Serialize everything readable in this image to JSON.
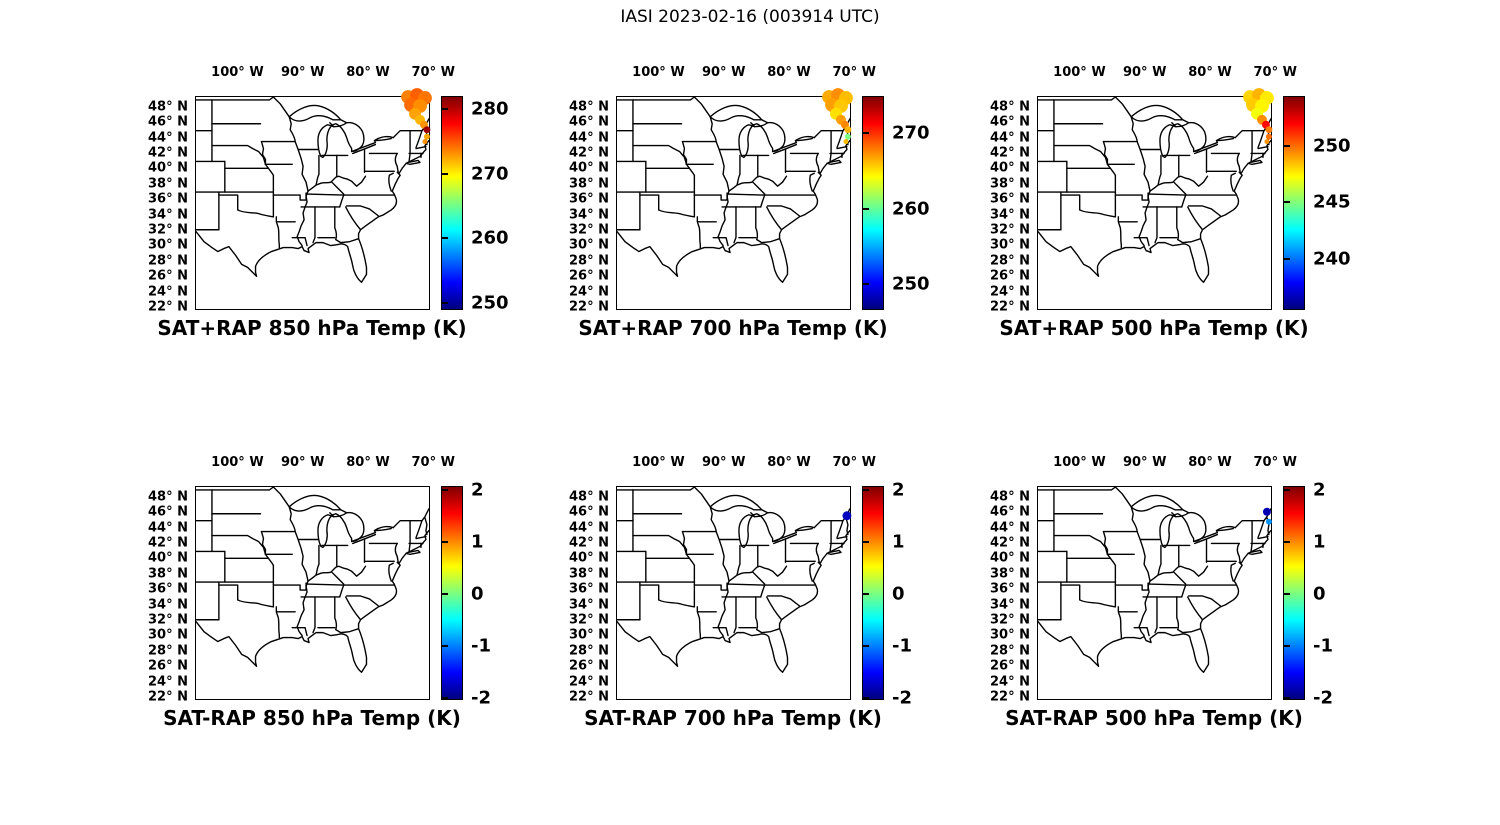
{
  "axes": {
    "x_ticks": [
      {
        "lon": -100,
        "label": "100° W"
      },
      {
        "lon": -90,
        "label": "90° W"
      },
      {
        "lon": -80,
        "label": "80° W"
      },
      {
        "lon": -70,
        "label": "70° W"
      }
    ],
    "y_ticks": [
      {
        "lat": 48,
        "label": "48° N"
      },
      {
        "lat": 46,
        "label": "46° N"
      },
      {
        "lat": 44,
        "label": "44° N"
      },
      {
        "lat": 42,
        "label": "42° N"
      },
      {
        "lat": 40,
        "label": "40° N"
      },
      {
        "lat": 38,
        "label": "38° N"
      },
      {
        "lat": 36,
        "label": "36° N"
      },
      {
        "lat": 34,
        "label": "34° N"
      },
      {
        "lat": 32,
        "label": "32° N"
      },
      {
        "lat": 30,
        "label": "30° N"
      },
      {
        "lat": 28,
        "label": "28° N"
      },
      {
        "lat": 26,
        "label": "26° N"
      },
      {
        "lat": 24,
        "label": "24° N"
      },
      {
        "lat": 22,
        "label": "22° N"
      }
    ]
  },
  "chart_data": {
    "type": "scatter_map",
    "title": "IASI 2023-02-16 (003914 UTC)",
    "colormap": "jet",
    "basemap": "US state boundaries, eastern and central CONUS",
    "projection_extent": {
      "lon_min": -106.5,
      "lon_max": -70.5,
      "lat_min": 21.6,
      "lat_max": 49.4
    },
    "panels": [
      {
        "id": "sat-plus-rap-850",
        "title": "SAT+RAP 850 hPa Temp (K)",
        "units": "K",
        "colorbar": {
          "min": 248.8,
          "max": 281.8,
          "ticks": [
            280,
            270,
            260,
            250
          ]
        },
        "points": [
          {
            "lon": -73.72,
            "lat": 49.4,
            "v": 273.5,
            "r": 7
          },
          {
            "lon": -72.34,
            "lat": 49.66,
            "v": 274.6,
            "r": 7
          },
          {
            "lon": -71.11,
            "lat": 49.27,
            "v": 273.9,
            "r": 7
          },
          {
            "lon": -73.26,
            "lat": 48.36,
            "v": 274.2,
            "r": 7
          },
          {
            "lon": -71.88,
            "lat": 48.23,
            "v": 273.1,
            "r": 7
          },
          {
            "lon": -72.64,
            "lat": 47.19,
            "v": 272.4,
            "r": 6
          },
          {
            "lon": -71.88,
            "lat": 46.41,
            "v": 271.8,
            "r": 5
          },
          {
            "lon": -71.27,
            "lat": 45.76,
            "v": 272.9,
            "r": 4
          },
          {
            "lon": -70.81,
            "lat": 45.11,
            "v": 280.9,
            "r": 3.5
          },
          {
            "lon": -70.81,
            "lat": 44.2,
            "v": 272.3,
            "r": 3
          },
          {
            "lon": -71.11,
            "lat": 43.55,
            "v": 273.0,
            "r": 2.5
          }
        ]
      },
      {
        "id": "sat-plus-rap-700",
        "title": "SAT+RAP 700 hPa Temp (K)",
        "units": "K",
        "colorbar": {
          "min": 246.4,
          "max": 274.8,
          "ticks": [
            270,
            260,
            250
          ]
        },
        "points": [
          {
            "lon": -73.72,
            "lat": 49.4,
            "v": 266.5,
            "r": 7
          },
          {
            "lon": -72.34,
            "lat": 49.66,
            "v": 267.3,
            "r": 7
          },
          {
            "lon": -71.11,
            "lat": 49.27,
            "v": 266.0,
            "r": 7
          },
          {
            "lon": -73.26,
            "lat": 48.36,
            "v": 266.8,
            "r": 7
          },
          {
            "lon": -71.88,
            "lat": 48.23,
            "v": 265.7,
            "r": 7
          },
          {
            "lon": -72.64,
            "lat": 47.19,
            "v": 265.0,
            "r": 6
          },
          {
            "lon": -71.88,
            "lat": 46.41,
            "v": 266.9,
            "r": 5
          },
          {
            "lon": -71.27,
            "lat": 45.76,
            "v": 267.5,
            "r": 4
          },
          {
            "lon": -70.81,
            "lat": 45.11,
            "v": 266.3,
            "r": 3.5
          },
          {
            "lon": -70.81,
            "lat": 44.2,
            "v": 260.5,
            "r": 3
          },
          {
            "lon": -71.11,
            "lat": 43.55,
            "v": 266.0,
            "r": 2.5
          }
        ]
      },
      {
        "id": "sat-plus-rap-500",
        "title": "SAT+RAP 500 hPa Temp (K)",
        "units": "K",
        "colorbar": {
          "min": 235.4,
          "max": 254.3,
          "ticks": [
            250,
            245,
            240
          ]
        },
        "points": [
          {
            "lon": -73.72,
            "lat": 49.4,
            "v": 248.0,
            "r": 7
          },
          {
            "lon": -72.34,
            "lat": 49.66,
            "v": 248.6,
            "r": 7
          },
          {
            "lon": -71.11,
            "lat": 49.27,
            "v": 247.6,
            "r": 7
          },
          {
            "lon": -73.26,
            "lat": 48.36,
            "v": 248.2,
            "r": 7
          },
          {
            "lon": -71.88,
            "lat": 48.23,
            "v": 247.4,
            "r": 7
          },
          {
            "lon": -72.64,
            "lat": 47.19,
            "v": 247.0,
            "r": 6
          },
          {
            "lon": -71.88,
            "lat": 46.41,
            "v": 249.3,
            "r": 5
          },
          {
            "lon": -71.27,
            "lat": 45.76,
            "v": 251.8,
            "r": 4
          },
          {
            "lon": -70.81,
            "lat": 45.11,
            "v": 249.6,
            "r": 3.5
          },
          {
            "lon": -70.81,
            "lat": 44.2,
            "v": 249.9,
            "r": 3
          },
          {
            "lon": -71.11,
            "lat": 43.55,
            "v": 249.2,
            "r": 2.5
          }
        ]
      },
      {
        "id": "sat-minus-rap-850",
        "title": "SAT-RAP 850 hPa Temp (K)",
        "units": "K",
        "colorbar": {
          "min": -2.05,
          "max": 2.05,
          "ticks": [
            2,
            1,
            0,
            -1,
            -2
          ]
        },
        "points": []
      },
      {
        "id": "sat-minus-rap-700",
        "title": "SAT-RAP 700 hPa Temp (K)",
        "units": "K",
        "colorbar": {
          "min": -2.05,
          "max": 2.05,
          "ticks": [
            2,
            1,
            0,
            -1,
            -2
          ]
        },
        "points": [
          {
            "lon": -70.96,
            "lat": 45.63,
            "v": -1.8,
            "r": 4.5
          }
        ]
      },
      {
        "id": "sat-minus-rap-500",
        "title": "SAT-RAP 500 hPa Temp (K)",
        "units": "K",
        "colorbar": {
          "min": -2.05,
          "max": 2.05,
          "ticks": [
            2,
            1,
            0,
            -1,
            -2
          ]
        },
        "points": [
          {
            "lon": -71.11,
            "lat": 46.15,
            "v": -1.85,
            "r": 4
          },
          {
            "lon": -70.81,
            "lat": 44.85,
            "v": -0.95,
            "r": 3
          }
        ]
      }
    ]
  }
}
